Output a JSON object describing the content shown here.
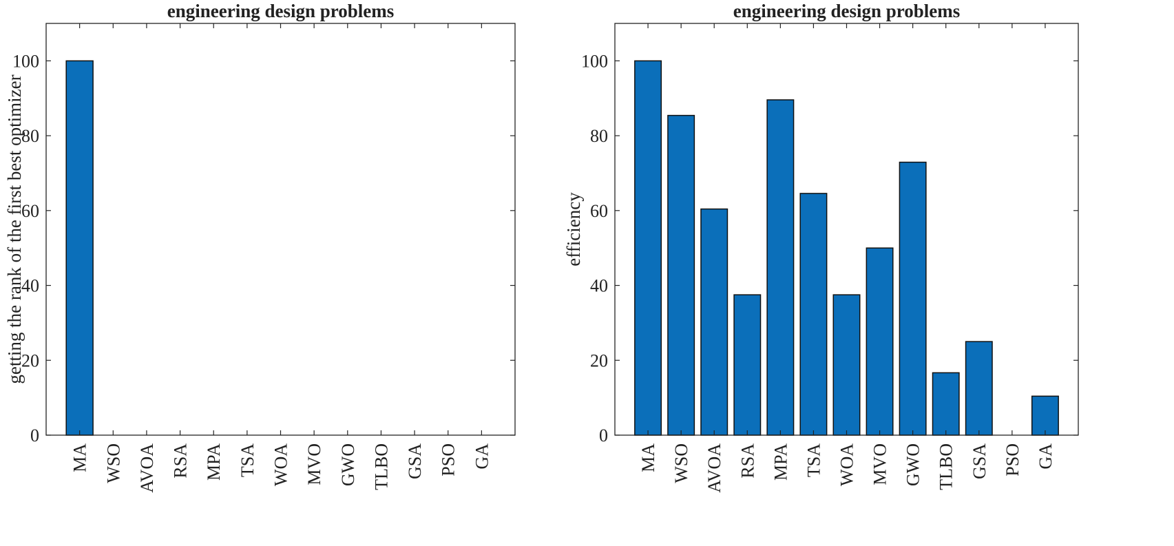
{
  "chart_data": [
    {
      "type": "bar",
      "title": "engineering design problems",
      "xlabel": "",
      "ylabel": "getting the rank of the first best optimizer",
      "categories": [
        "MA",
        "WSO",
        "AVOA",
        "RSA",
        "MPA",
        "TSA",
        "WOA",
        "MVO",
        "GWO",
        "TLBO",
        "GSA",
        "PSO",
        "GA"
      ],
      "values": [
        100,
        0,
        0,
        0,
        0,
        0,
        0,
        0,
        0,
        0,
        0,
        0,
        0
      ],
      "ylim": [
        0,
        110
      ],
      "yticks": [
        0,
        20,
        40,
        60,
        80,
        100
      ],
      "grid": false,
      "bar_color": "#0b6fba"
    },
    {
      "type": "bar",
      "title": "engineering design problems",
      "xlabel": "",
      "ylabel": "efficiency",
      "categories": [
        "MA",
        "WSO",
        "AVOA",
        "RSA",
        "MPA",
        "TSA",
        "WOA",
        "MVO",
        "GWO",
        "TLBO",
        "GSA",
        "PSO",
        "GA"
      ],
      "values": [
        100,
        85.42,
        60.42,
        37.5,
        89.58,
        64.58,
        37.5,
        50,
        72.92,
        16.67,
        25,
        0,
        10.42
      ],
      "ylim": [
        0,
        110
      ],
      "yticks": [
        0,
        20,
        40,
        60,
        80,
        100
      ],
      "grid": false,
      "bar_color": "#0b6fba"
    }
  ]
}
